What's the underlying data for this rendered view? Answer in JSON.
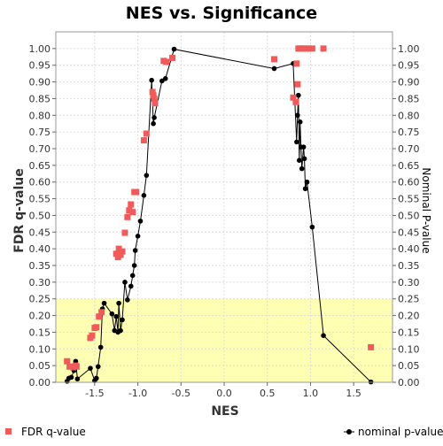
{
  "chart_data": {
    "type": "scatter",
    "title": "NES vs. Significance",
    "xlabel": "NES",
    "ylabel": "FDR q-value",
    "y2label": "Nominal P-value",
    "xlim": [
      -1.95,
      1.95
    ],
    "ylim": [
      0,
      1.05
    ],
    "y2lim": [
      0,
      1.05
    ],
    "x_ticks": [
      "-1.5",
      "-1.0",
      "-0.5",
      "0.0",
      "0.5",
      "1.0",
      "1.5"
    ],
    "x_tick_values": [
      -1.5,
      -1.0,
      -0.5,
      0.0,
      0.5,
      1.0,
      1.5
    ],
    "y_ticks": [
      "0.00",
      "0.05",
      "0.10",
      "0.15",
      "0.20",
      "0.25",
      "0.30",
      "0.35",
      "0.40",
      "0.45",
      "0.50",
      "0.55",
      "0.60",
      "0.65",
      "0.70",
      "0.75",
      "0.80",
      "0.85",
      "0.90",
      "0.95",
      "1.00"
    ],
    "y_tick_values": [
      0,
      0.05,
      0.1,
      0.15,
      0.2,
      0.25,
      0.3,
      0.35,
      0.4,
      0.45,
      0.5,
      0.55,
      0.6,
      0.65,
      0.7,
      0.75,
      0.8,
      0.85,
      0.9,
      0.95,
      1.0
    ],
    "highlight_band": [
      0,
      0.25
    ],
    "grid": true,
    "legend_position": "bottom",
    "colors": {
      "fdr": "#f05a5a",
      "nominal": "#000000",
      "band": "#ffffb3",
      "grid": "#dddddd"
    },
    "series": [
      {
        "name": "FDR q-value",
        "kind": "scatter",
        "points": [
          [
            -1.82,
            0.063
          ],
          [
            -1.79,
            0.047
          ],
          [
            -1.75,
            0.045
          ],
          [
            -1.72,
            0.05
          ],
          [
            -1.71,
            0.047
          ],
          [
            -1.55,
            0.133
          ],
          [
            -1.53,
            0.14
          ],
          [
            -1.5,
            0.163
          ],
          [
            -1.48,
            0.165
          ],
          [
            -1.45,
            0.197
          ],
          [
            -1.42,
            0.21
          ],
          [
            -1.25,
            0.385
          ],
          [
            -1.23,
            0.375
          ],
          [
            -1.22,
            0.4
          ],
          [
            -1.2,
            0.382
          ],
          [
            -1.18,
            0.392
          ],
          [
            -1.15,
            0.448
          ],
          [
            -1.12,
            0.495
          ],
          [
            -1.1,
            0.515
          ],
          [
            -1.08,
            0.533
          ],
          [
            -1.06,
            0.51
          ],
          [
            -1.04,
            0.57
          ],
          [
            -1.02,
            0.57
          ],
          [
            -0.93,
            0.725
          ],
          [
            -0.9,
            0.745
          ],
          [
            -0.83,
            0.87
          ],
          [
            -0.82,
            0.86
          ],
          [
            -0.81,
            0.85
          ],
          [
            -0.8,
            0.836
          ],
          [
            -0.7,
            0.963
          ],
          [
            -0.67,
            0.96
          ],
          [
            -0.6,
            0.972
          ],
          [
            0.58,
            0.968
          ],
          [
            0.8,
            0.853
          ],
          [
            0.83,
            0.84
          ],
          [
            0.84,
            0.955
          ],
          [
            0.85,
            0.893
          ],
          [
            0.86,
            1.0
          ],
          [
            0.88,
            1.0
          ],
          [
            0.9,
            1.0
          ],
          [
            0.92,
            1.0
          ],
          [
            0.95,
            1.0
          ],
          [
            0.98,
            1.0
          ],
          [
            1.02,
            1.0
          ],
          [
            1.15,
            1.0
          ],
          [
            1.7,
            0.105
          ]
        ]
      },
      {
        "name": "nominal p-value",
        "kind": "line",
        "points": [
          [
            -1.82,
            0.003
          ],
          [
            -1.8,
            0.012
          ],
          [
            -1.77,
            0.015
          ],
          [
            -1.74,
            0.035
          ],
          [
            -1.72,
            0.063
          ],
          [
            -1.7,
            0.01
          ],
          [
            -1.55,
            0.042
          ],
          [
            -1.5,
            0.005
          ],
          [
            -1.48,
            0.012
          ],
          [
            -1.46,
            0.047
          ],
          [
            -1.43,
            0.105
          ],
          [
            -1.41,
            0.22
          ],
          [
            -1.39,
            0.237
          ],
          [
            -1.3,
            0.205
          ],
          [
            -1.27,
            0.155
          ],
          [
            -1.25,
            0.197
          ],
          [
            -1.23,
            0.15
          ],
          [
            -1.22,
            0.237
          ],
          [
            -1.2,
            0.155
          ],
          [
            -1.18,
            0.187
          ],
          [
            -1.15,
            0.3
          ],
          [
            -1.12,
            0.247
          ],
          [
            -1.08,
            0.288
          ],
          [
            -1.06,
            0.32
          ],
          [
            -1.04,
            0.35
          ],
          [
            -1.03,
            0.395
          ],
          [
            -1.0,
            0.438
          ],
          [
            -0.97,
            0.483
          ],
          [
            -0.93,
            0.56
          ],
          [
            -0.9,
            0.62
          ],
          [
            -0.84,
            0.905
          ],
          [
            -0.82,
            0.775
          ],
          [
            -0.81,
            0.793
          ],
          [
            -0.72,
            0.903
          ],
          [
            -0.68,
            0.91
          ],
          [
            -0.58,
            0.998
          ],
          [
            0.58,
            0.94
          ],
          [
            0.8,
            0.955
          ],
          [
            0.84,
            0.72
          ],
          [
            0.85,
            0.8
          ],
          [
            0.86,
            0.86
          ],
          [
            0.87,
            0.665
          ],
          [
            0.88,
            0.78
          ],
          [
            0.89,
            0.705
          ],
          [
            0.9,
            0.64
          ],
          [
            0.92,
            0.705
          ],
          [
            0.93,
            0.67
          ],
          [
            0.94,
            0.58
          ],
          [
            0.96,
            0.6
          ],
          [
            1.02,
            0.465
          ],
          [
            1.15,
            0.14
          ],
          [
            1.7,
            0.001
          ]
        ]
      }
    ]
  }
}
